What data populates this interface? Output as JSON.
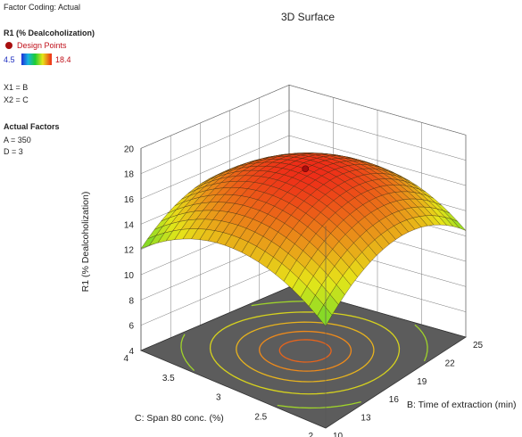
{
  "panel": {
    "factor_coding": "Factor Coding: Actual",
    "response_title": "R1 (% Dealcoholization)",
    "legend_design_points": "Design Points",
    "color_min": "4.5",
    "color_max": "18.4",
    "x1": "X1 = B",
    "x2": "X2 = C",
    "actual_factors_title": "Actual Factors",
    "actual_a": "A = 350",
    "actual_d": "D = 3"
  },
  "chart_data": {
    "type": "surface",
    "title": "3D Surface",
    "xlabel": "B: Time of extraction (min)",
    "ylabel": "C: Span 80 conc. (%)",
    "zlabel": "R1 (% Dealcoholization)",
    "x_range": [
      10,
      25
    ],
    "y_range": [
      2,
      4
    ],
    "z_range": [
      4,
      20
    ],
    "x_ticks": [
      "10",
      "13",
      "16",
      "19",
      "22",
      "25"
    ],
    "y_ticks": [
      "2",
      "2.5",
      "3",
      "3.5",
      "4"
    ],
    "z_ticks": [
      "4",
      "6",
      "8",
      "10",
      "12",
      "14",
      "16",
      "18",
      "20"
    ],
    "color_range": [
      4.5,
      18.4
    ],
    "surface_peak": {
      "x": 17.5,
      "y": 3.0,
      "z": 18.4
    },
    "surface_corners": [
      {
        "x": 10,
        "y": 2,
        "z": 10.5
      },
      {
        "x": 25,
        "y": 2,
        "z": 14.5
      },
      {
        "x": 25,
        "y": 4,
        "z": 12.5
      },
      {
        "x": 10,
        "y": 4,
        "z": 11.5
      }
    ],
    "design_points": [
      {
        "x": 17.5,
        "y": 3.0,
        "z": 18.4
      }
    ],
    "contour_projection": "floor",
    "grid": true
  }
}
